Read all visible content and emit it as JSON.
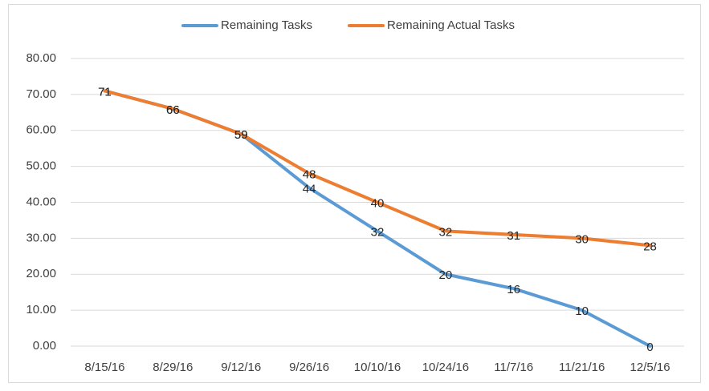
{
  "chart_data": {
    "type": "line",
    "categories": [
      "8/15/16",
      "8/29/16",
      "9/12/16",
      "9/26/16",
      "10/10/16",
      "10/24/16",
      "11/7/16",
      "11/21/16",
      "12/5/16"
    ],
    "series": [
      {
        "name": "Remaining Tasks",
        "color": "#5b9bd5",
        "values": [
          71,
          66,
          59,
          44,
          32,
          20,
          16,
          10,
          0
        ]
      },
      {
        "name": "Remaining Actual Tasks",
        "color": "#ed7d31",
        "values": [
          71,
          66,
          59,
          48,
          40,
          32,
          31,
          30,
          28
        ]
      }
    ],
    "ylim": [
      0,
      80
    ],
    "yticks": [
      {
        "value": 0,
        "label": "0.00"
      },
      {
        "value": 10,
        "label": "10.00"
      },
      {
        "value": 20,
        "label": "20.00"
      },
      {
        "value": 30,
        "label": "30.00"
      },
      {
        "value": 40,
        "label": "40.00"
      },
      {
        "value": 50,
        "label": "50.00"
      },
      {
        "value": 60,
        "label": "60.00"
      },
      {
        "value": 70,
        "label": "70.00"
      },
      {
        "value": 80,
        "label": "80.00"
      }
    ],
    "grid": true,
    "legend": "top"
  }
}
